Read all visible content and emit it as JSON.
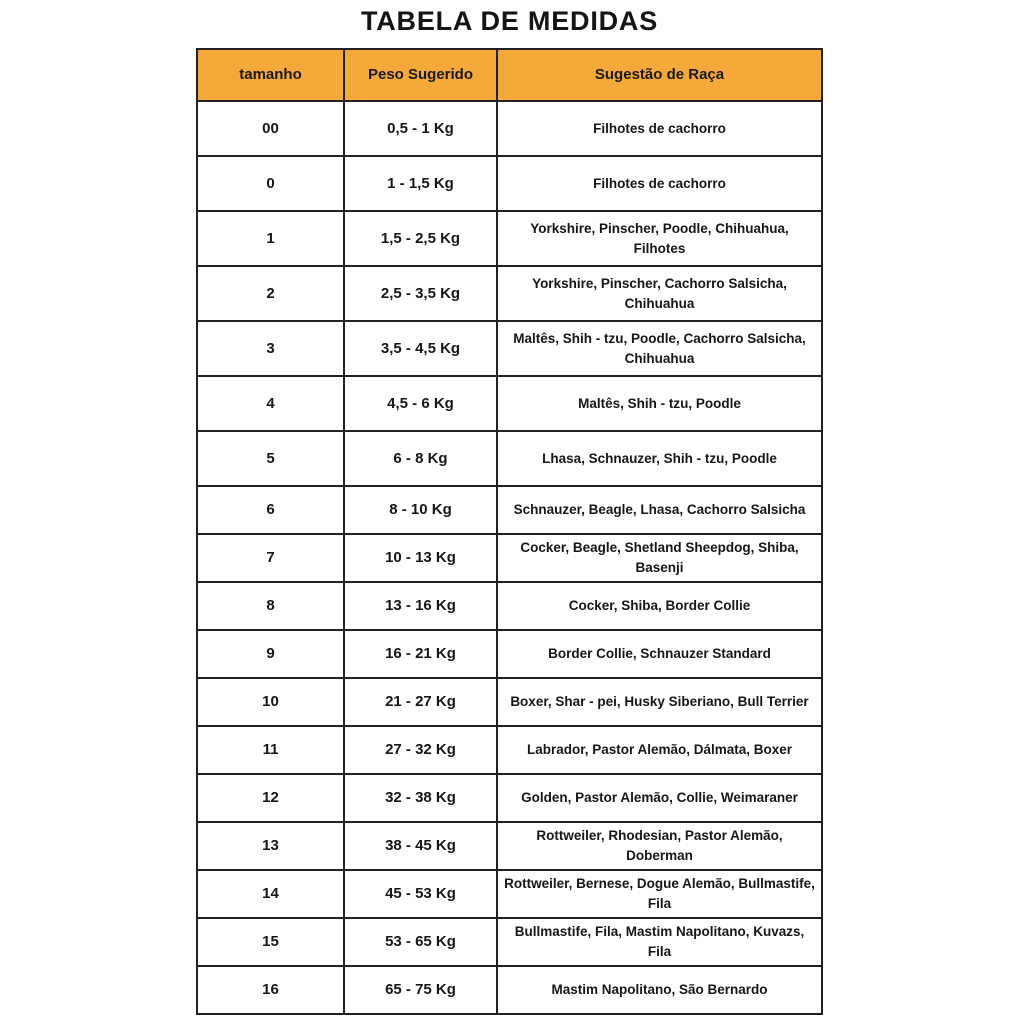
{
  "colors": {
    "header_bg": "#F6A93B",
    "border": "#212121",
    "text": "#161616",
    "page_bg": "#FFFFFF"
  },
  "chart_data": {
    "type": "table",
    "title": "TABELA DE MEDIDAS",
    "columns": [
      "tamanho",
      "Peso Sugerido",
      "Sugestão de Raça"
    ],
    "rows": [
      {
        "size": "00",
        "weight": "0,5 - 1 Kg",
        "breeds": "Filhotes de cachorro"
      },
      {
        "size": "0",
        "weight": "1 - 1,5 Kg",
        "breeds": "Filhotes de cachorro"
      },
      {
        "size": "1",
        "weight": "1,5 - 2,5 Kg",
        "breeds": "Yorkshire, Pinscher, Poodle, Chihuahua, Filhotes"
      },
      {
        "size": "2",
        "weight": "2,5 - 3,5 Kg",
        "breeds": "Yorkshire, Pinscher, Cachorro Salsicha, Chihuahua"
      },
      {
        "size": "3",
        "weight": "3,5 - 4,5 Kg",
        "breeds": "Maltês, Shih - tzu, Poodle, Cachorro Salsicha, Chihuahua"
      },
      {
        "size": "4",
        "weight": "4,5 - 6 Kg",
        "breeds": "Maltês, Shih - tzu, Poodle"
      },
      {
        "size": "5",
        "weight": "6 - 8 Kg",
        "breeds": "Lhasa, Schnauzer, Shih - tzu, Poodle"
      },
      {
        "size": "6",
        "weight": "8 - 10 Kg",
        "breeds": "Schnauzer, Beagle, Lhasa, Cachorro Salsicha"
      },
      {
        "size": "7",
        "weight": "10 - 13 Kg",
        "breeds": "Cocker, Beagle, Shetland Sheepdog, Shiba, Basenji"
      },
      {
        "size": "8",
        "weight": "13 - 16 Kg",
        "breeds": "Cocker, Shiba, Border Collie"
      },
      {
        "size": "9",
        "weight": "16 - 21 Kg",
        "breeds": "Border Collie, Schnauzer Standard"
      },
      {
        "size": "10",
        "weight": "21 - 27 Kg",
        "breeds": "Boxer, Shar - pei, Husky Siberiano, Bull Terrier"
      },
      {
        "size": "11",
        "weight": "27 - 32 Kg",
        "breeds": "Labrador, Pastor Alemão, Dálmata, Boxer"
      },
      {
        "size": "12",
        "weight": "32 - 38 Kg",
        "breeds": "Golden, Pastor Alemão, Collie, Weimaraner"
      },
      {
        "size": "13",
        "weight": "38 - 45 Kg",
        "breeds": "Rottweiler, Rhodesian, Pastor Alemão, Doberman"
      },
      {
        "size": "14",
        "weight": "45 - 53 Kg",
        "breeds": "Rottweiler, Bernese, Dogue Alemão, Bullmastife, Fila"
      },
      {
        "size": "15",
        "weight": "53 - 65 Kg",
        "breeds": "Bullmastife, Fila, Mastim Napolitano, Kuvazs, Fila"
      },
      {
        "size": "16",
        "weight": "65 - 75 Kg",
        "breeds": "Mastim Napolitano, São Bernardo"
      }
    ]
  }
}
